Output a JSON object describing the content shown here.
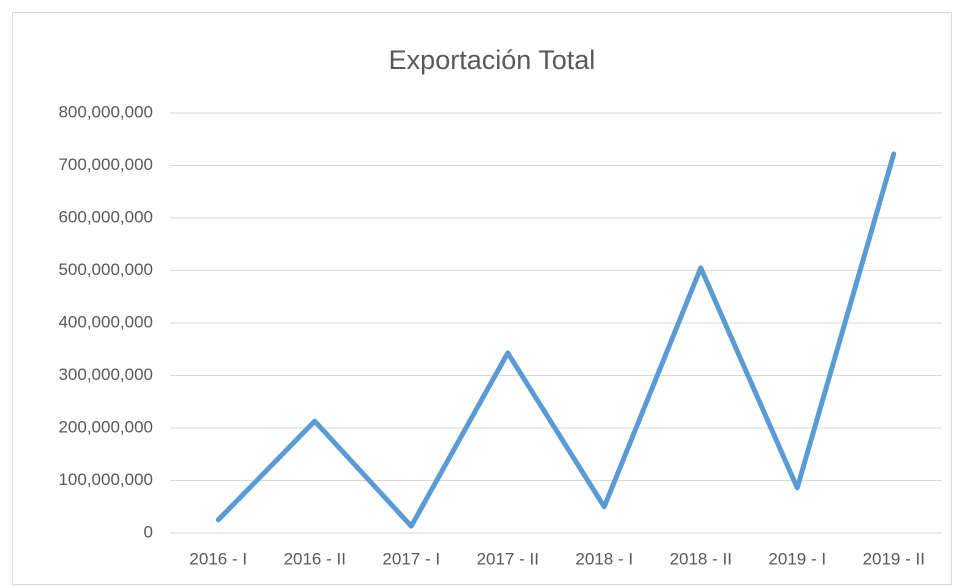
{
  "chart_data": {
    "type": "line",
    "title": "Exportación Total",
    "categories": [
      "2016 - I",
      "2016 - II",
      "2017 - I",
      "2017 - II",
      "2018 - I",
      "2018 - II",
      "2019 - I",
      "2019 - II"
    ],
    "values": [
      25000000,
      213000000,
      13000000,
      343000000,
      50000000,
      505000000,
      86000000,
      722000000
    ],
    "color": "#5b9bd5",
    "ylim": [
      0,
      800000000
    ],
    "yticks": [
      0,
      {
        "value": 100000000,
        "label": "100,000,000"
      },
      {
        "value": 200000000,
        "label": "200,000,000"
      },
      {
        "value": 300000000,
        "label": "300,000,000"
      },
      {
        "value": 400000000,
        "label": "400,000,000"
      },
      {
        "value": 500000000,
        "label": "500,000,000"
      },
      {
        "value": 600000000,
        "label": "600,000,000"
      },
      {
        "value": 700000000,
        "label": "700,000,000"
      },
      {
        "value": 800000000,
        "label": "800,000,000"
      }
    ],
    "grid": true
  }
}
